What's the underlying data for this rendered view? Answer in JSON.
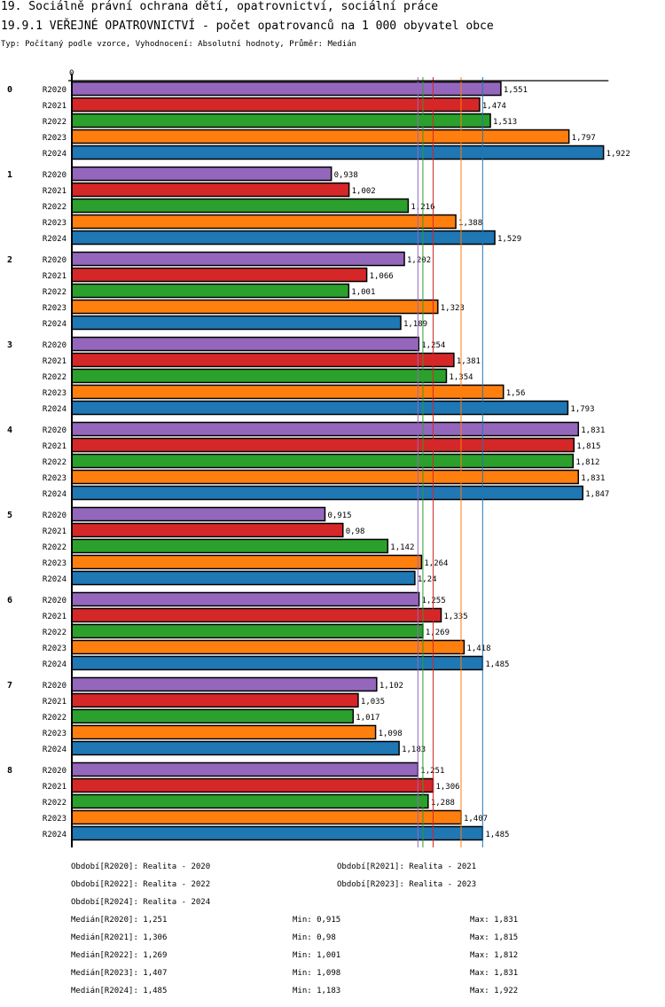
{
  "header": {
    "title": "19. Sociálně právní ochrana dětí, opatrovnictví, sociální práce",
    "subtitle_title": "19.9.1 VEŘEJNÉ OPATROVNICTVÍ - počet opatrovanců na 1 000 obyvatel obce",
    "meta": "Typ: Počítaný podle vzorce, Vyhodnocení: Absolutní hodnoty, Průměr: Medián"
  },
  "chart_data": {
    "type": "bar",
    "orientation": "horizontal",
    "title": "19.9.1 VEŘEJNÉ OPATROVNICTVÍ - počet opatrovanců na 1 000 obyvatel obce",
    "xlabel": "",
    "ylabel": "",
    "xlim": [
      0,
      1.94
    ],
    "x_tick_labels": [
      "0"
    ],
    "grid": false,
    "decimal_separator": ",",
    "categories": [
      "0",
      "1",
      "2",
      "3",
      "4",
      "5",
      "6",
      "7",
      "8"
    ],
    "series": [
      {
        "name": "R2020",
        "color": "#9467bd",
        "values": [
          1.551,
          0.938,
          1.202,
          1.254,
          1.831,
          0.915,
          1.255,
          1.102,
          1.251
        ],
        "labels": [
          "1,551",
          "0,938",
          "1,202",
          "1,254",
          "1,831",
          "0,915",
          "1,255",
          "1,102",
          "1,251"
        ]
      },
      {
        "name": "R2021",
        "color": "#d62728",
        "values": [
          1.474,
          1.002,
          1.066,
          1.381,
          1.815,
          0.98,
          1.335,
          1.035,
          1.306
        ],
        "labels": [
          "1,474",
          "1,002",
          "1,066",
          "1,381",
          "1,815",
          "0,98",
          "1,335",
          "1,035",
          "1,306"
        ]
      },
      {
        "name": "R2022",
        "color": "#2ca02c",
        "values": [
          1.513,
          1.216,
          1.001,
          1.354,
          1.812,
          1.142,
          1.269,
          1.017,
          1.288
        ],
        "labels": [
          "1,513",
          "1,216",
          "1,001",
          "1,354",
          "1,812",
          "1,142",
          "1,269",
          "1,017",
          "1,288"
        ]
      },
      {
        "name": "R2023",
        "color": "#ff7f0e",
        "values": [
          1.797,
          1.388,
          1.323,
          1.56,
          1.831,
          1.264,
          1.418,
          1.098,
          1.407
        ],
        "labels": [
          "1,797",
          "1,388",
          "1,323",
          "1,56",
          "1,831",
          "1,264",
          "1,418",
          "1,098",
          "1,407"
        ]
      },
      {
        "name": "R2024",
        "color": "#1f77b4",
        "values": [
          1.922,
          1.529,
          1.189,
          1.793,
          1.847,
          1.24,
          1.485,
          1.183,
          1.485
        ],
        "labels": [
          "1,922",
          "1,529",
          "1,189",
          "1,793",
          "1,847",
          "1,24",
          "1,485",
          "1,183",
          "1,485"
        ]
      }
    ],
    "median_lines": [
      {
        "series": "R2020",
        "value": 1.251,
        "color": "#9467bd"
      },
      {
        "series": "R2021",
        "value": 1.306,
        "color": "#d62728"
      },
      {
        "series": "R2022",
        "value": 1.269,
        "color": "#2ca02c"
      },
      {
        "series": "R2023",
        "value": 1.407,
        "color": "#ff7f0e"
      },
      {
        "series": "R2024",
        "value": 1.485,
        "color": "#1f77b4"
      }
    ]
  },
  "footer": {
    "periods": [
      "Období[R2020]: Realita - 2020",
      "Období[R2021]: Realita - 2021",
      "Období[R2022]: Realita - 2022",
      "Období[R2023]: Realita - 2023",
      "Období[R2024]: Realita - 2024"
    ],
    "stats": [
      {
        "median": "Medián[R2020]: 1,251",
        "min": "Min: 0,915",
        "max": "Max: 1,831"
      },
      {
        "median": "Medián[R2021]: 1,306",
        "min": "Min: 0,98",
        "max": "Max: 1,815"
      },
      {
        "median": "Medián[R2022]: 1,269",
        "min": "Min: 1,001",
        "max": "Max: 1,812"
      },
      {
        "median": "Medián[R2023]: 1,407",
        "min": "Min: 1,098",
        "max": "Max: 1,831"
      },
      {
        "median": "Medián[R2024]: 1,485",
        "min": "Min: 1,183",
        "max": "Max: 1,922"
      }
    ]
  }
}
